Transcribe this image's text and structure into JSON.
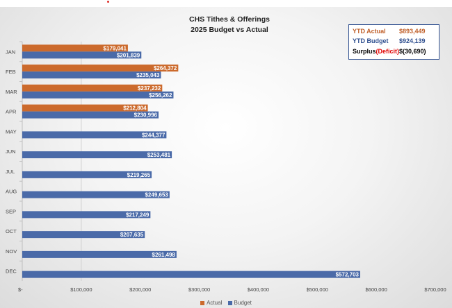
{
  "chart_data": {
    "type": "bar",
    "orientation": "horizontal",
    "title": "CHS Tithes & Offerings",
    "subtitle": "2025 Budget vs Actual",
    "categories": [
      "JAN",
      "FEB",
      "MAR",
      "APR",
      "MAY",
      "JUN",
      "JUL",
      "AUG",
      "SEP",
      "OCT",
      "NOV",
      "DEC"
    ],
    "series": [
      {
        "name": "Actual",
        "color": "#cc6a2c",
        "values": [
          179041,
          264372,
          237232,
          212804,
          null,
          null,
          null,
          null,
          null,
          null,
          null,
          null
        ],
        "labels": [
          "$179,041",
          "$264,372",
          "$237,232",
          "$212,804",
          "",
          "",
          "",
          "",
          "",
          "",
          "",
          ""
        ]
      },
      {
        "name": "Budget",
        "color": "#4a6aa8",
        "values": [
          201839,
          235043,
          256262,
          230996,
          244377,
          253481,
          219265,
          249653,
          217249,
          207635,
          261498,
          572703
        ],
        "labels": [
          "$201,839",
          "$235,043",
          "$256,262",
          "$230,996",
          "$244,377",
          "$253,481",
          "$219,265",
          "$249,653",
          "$217,249",
          "$207,635",
          "$261,498",
          "$572,703"
        ]
      }
    ],
    "xlim": [
      0,
      700000
    ],
    "xticks": [
      0,
      100000,
      200000,
      300000,
      400000,
      500000,
      600000,
      700000
    ],
    "xtick_labels": [
      "$-",
      "$100,000",
      "$200,000",
      "$300,000",
      "$400,000",
      "$500,000",
      "$600,000",
      "$700,000"
    ],
    "legend_position": "bottom",
    "grid": false
  },
  "summary": {
    "ytd_actual_label": "YTD Actual",
    "ytd_actual_value": "$893,449",
    "ytd_budget_label": "YTD Budget",
    "ytd_budget_value": "$924,139",
    "surplus_label": "Surplus",
    "deficit_label": "(Deficit)",
    "surplus_value": "$(30,690)",
    "actual_color": "#c0602a",
    "budget_color": "#2f4f8f",
    "deficit_color": "#e00000"
  }
}
